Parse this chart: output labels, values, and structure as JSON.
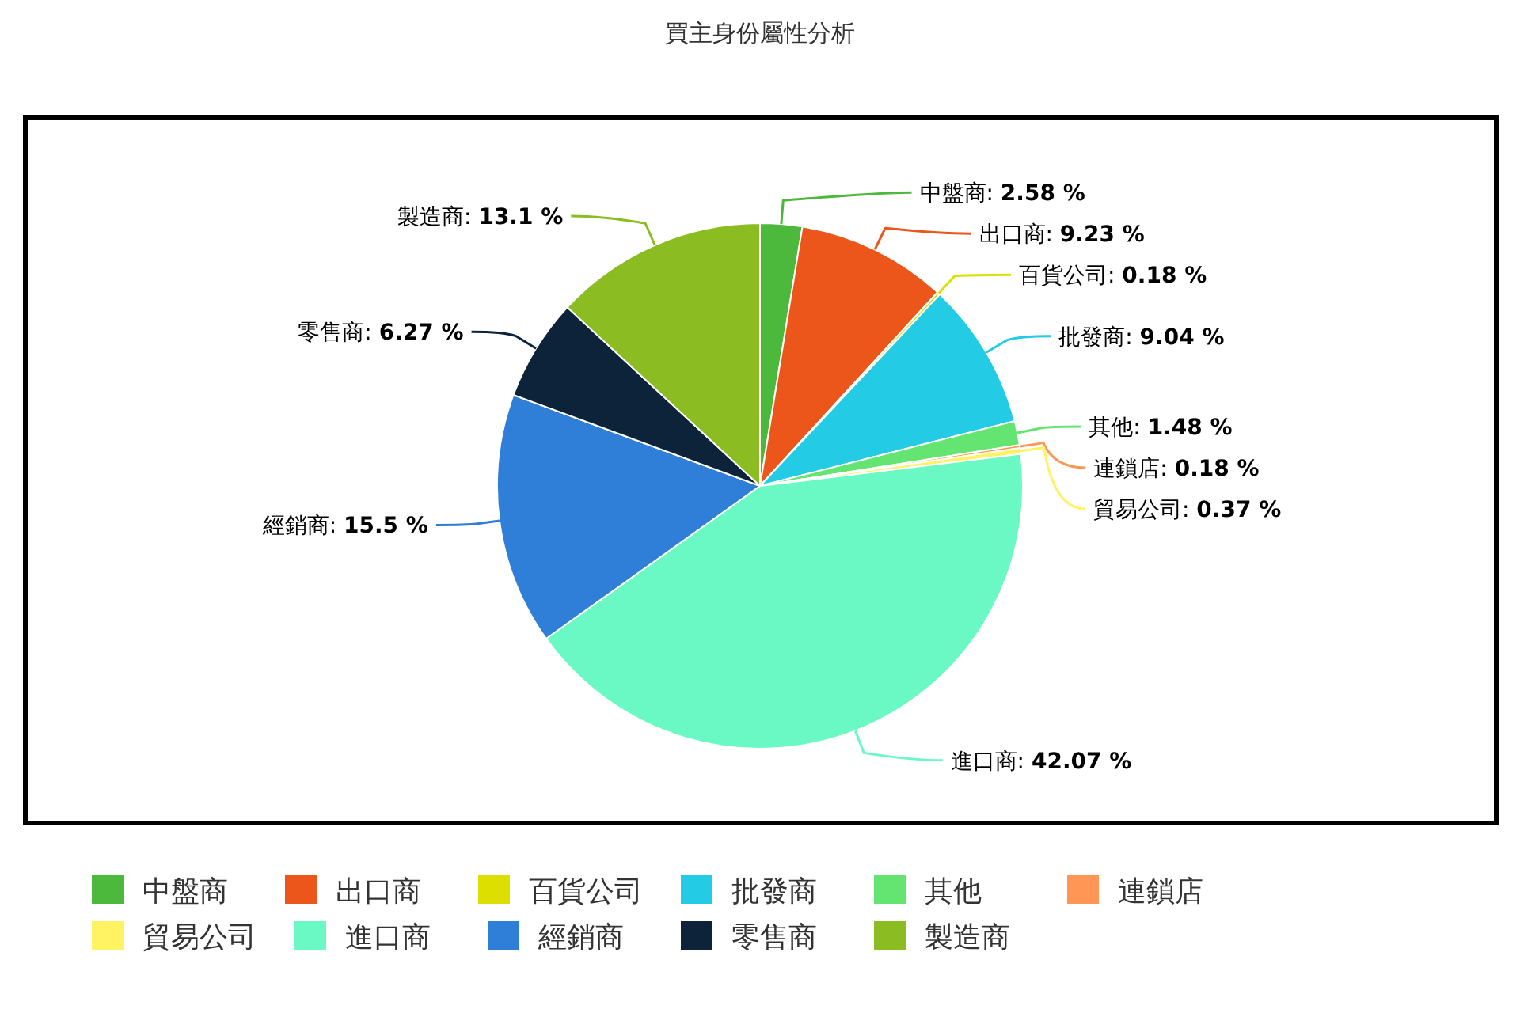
{
  "chart_data": {
    "type": "pie",
    "title": "買主身份屬性分析",
    "categories": [
      "中盤商",
      "出口商",
      "百貨公司",
      "批發商",
      "其他",
      "連鎖店",
      "貿易公司",
      "進口商",
      "經銷商",
      "零售商",
      "製造商"
    ],
    "values": [
      2.58,
      9.23,
      0.18,
      9.04,
      1.48,
      0.18,
      0.37,
      42.07,
      15.5,
      6.27,
      13.1
    ],
    "value_labels": [
      "中盤商: **2.58 %**",
      "出口商: **9.23 %**",
      "百貨公司: **0.18 %**",
      "批發商: **9.04 %**",
      "其他: **1.48 %**",
      "連鎖店: **0.18 %**",
      "貿易公司: **0.37 %**",
      "進口商: **42.07 %**",
      "經銷商: **15.5 %**",
      "零售商: **6.27 %**",
      "製造商: **13.1 %**"
    ],
    "colors": [
      "#4cb93c",
      "#ec561b",
      "#dddf00",
      "#24cbe5",
      "#64e572",
      "#ff9655",
      "#fff263",
      "#6af9c4",
      "#2f7ed8",
      "#0d233a",
      "#8bbc21"
    ],
    "legend": "bottom"
  }
}
